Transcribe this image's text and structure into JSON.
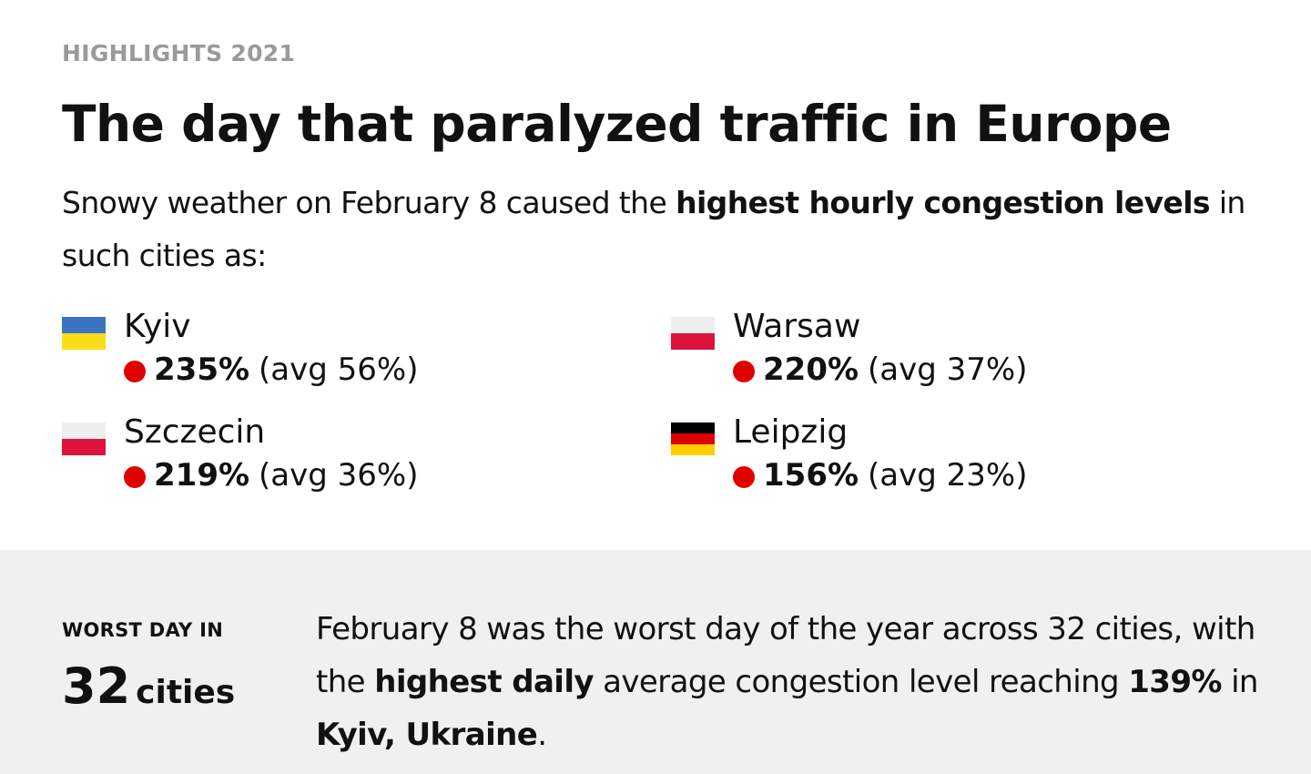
{
  "eyebrow": "HIGHLIGHTS 2021",
  "headline": "The day that paralyzed traffic in Europe",
  "intro": {
    "before": "Snowy weather on February 8 caused the ",
    "bold": "highest hourly congestion levels",
    "after": " in such cities as:"
  },
  "cities": [
    {
      "name": "Kyiv",
      "value": "235%",
      "avg": "(avg 56%)",
      "flag": "ukraine-flag",
      "flag_colors": [
        "#3a75c4",
        "#f9dd16"
      ]
    },
    {
      "name": "Warsaw",
      "value": "220%",
      "avg": "(avg 37%)",
      "flag": "poland-flag",
      "flag_colors": [
        "#eeeeee",
        "#dc143c"
      ]
    },
    {
      "name": "Szczecin",
      "value": "219%",
      "avg": "(avg 36%)",
      "flag": "poland-flag",
      "flag_colors": [
        "#eeeeee",
        "#dc143c"
      ]
    },
    {
      "name": "Leipzig",
      "value": "156%",
      "avg": "(avg 23%)",
      "flag": "germany-flag",
      "flag_colors": [
        "#000000",
        "#dd0000",
        "#ffce00"
      ]
    }
  ],
  "indicator_color": "#e10000",
  "worst": {
    "label": "WORST DAY IN",
    "number": "32",
    "unit": "cities"
  },
  "summary": {
    "p1": "February 8 was the worst day of the year across 32 cities, with the ",
    "b1": "highest daily",
    "p2": " average congestion level reaching ",
    "b2": "139%",
    "p3": " in ",
    "b3": "Kyiv, Ukraine",
    "p4": "."
  },
  "colors": {
    "eyebrow": "#9a9a9a",
    "text": "#111111",
    "panel_bg": "#f0f0f0"
  }
}
